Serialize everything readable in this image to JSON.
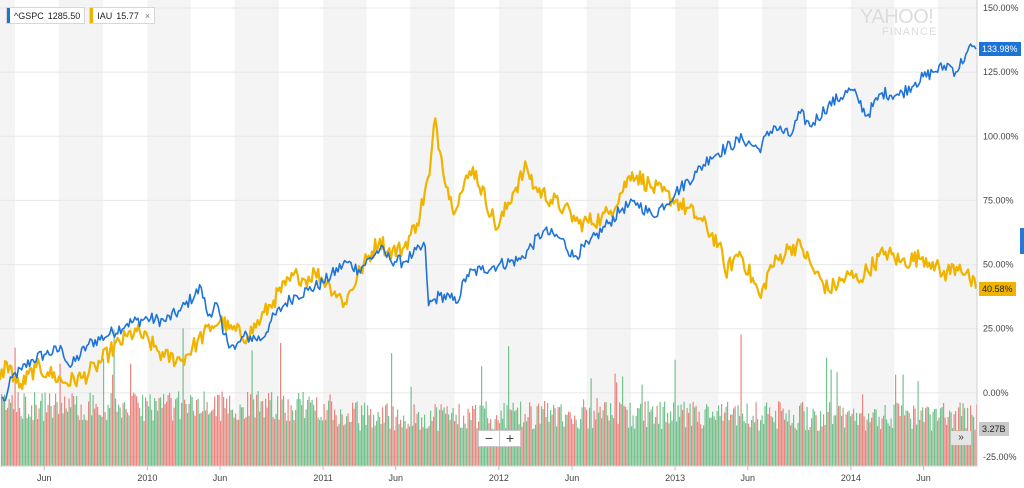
{
  "legend": {
    "items": [
      {
        "symbol": "^GSPC",
        "value": "1285.50",
        "color": "#1e73d6",
        "closable": false
      },
      {
        "symbol": "IAU",
        "value": "15.77",
        "color": "#f0b400",
        "closable": true
      }
    ],
    "close_glyph": "×"
  },
  "watermark": {
    "line1": "YAHOO!",
    "line2": "FINANCE"
  },
  "controls": {
    "zoom_out": "−",
    "zoom_in": "+",
    "expand": "»"
  },
  "colors": {
    "gspc": "#1e73d6",
    "iau": "#f0b400",
    "vol_up": "#5cb87b",
    "vol_down": "#e8716b",
    "band": "#f4f4f4"
  },
  "chart_data": {
    "type": "line",
    "ylabel": "",
    "xlabel": "",
    "y_unit": "%",
    "ylim": [
      -25,
      150
    ],
    "yticks": [
      "150.00%",
      "125.00%",
      "100.00%",
      "75.00%",
      "50.00%",
      "25.00%",
      "0.00%",
      "-25.00%"
    ],
    "ytick_values": [
      150,
      125,
      100,
      75,
      50,
      25,
      0,
      -25
    ],
    "xticks": [
      "Jun",
      "2010",
      "Jun",
      "2011",
      "Jun",
      "2012",
      "Jun",
      "2013",
      "Jun",
      "2014",
      "Jun"
    ],
    "xtick_dates": [
      "2009-06-01",
      "2010-01-01",
      "2010-06-01",
      "2011-01-01",
      "2011-06-01",
      "2012-01-01",
      "2012-06-01",
      "2013-01-01",
      "2013-06-01",
      "2014-01-01",
      "2014-06-01"
    ],
    "xlim": [
      "2009-03-01",
      "2014-09-20"
    ],
    "grid": true,
    "series": [
      {
        "name": "^GSPC",
        "last_label": "133.98%",
        "x": [
          "2009-03-05",
          "2009-03-09",
          "2009-03-15",
          "2009-03-26",
          "2009-04-15",
          "2009-05-08",
          "2009-06-01",
          "2009-07-08",
          "2009-07-25",
          "2009-09-01",
          "2009-10-15",
          "2009-11-20",
          "2010-01-01",
          "2010-02-05",
          "2010-03-10",
          "2010-04-23",
          "2010-05-07",
          "2010-05-25",
          "2010-06-07",
          "2010-07-02",
          "2010-07-20",
          "2010-08-27",
          "2010-09-15",
          "2010-10-15",
          "2010-11-05",
          "2010-12-01",
          "2011-01-01",
          "2011-02-18",
          "2011-03-16",
          "2011-04-29",
          "2011-05-20",
          "2011-06-16",
          "2011-07-07",
          "2011-08-01",
          "2011-08-08",
          "2011-08-31",
          "2011-09-22",
          "2011-10-04",
          "2011-10-27",
          "2011-11-25",
          "2012-01-01",
          "2012-02-15",
          "2012-04-02",
          "2012-05-10",
          "2012-06-04",
          "2012-07-06",
          "2012-08-15",
          "2012-09-14",
          "2012-10-15",
          "2012-11-15",
          "2013-01-02",
          "2013-02-15",
          "2013-03-15",
          "2013-05-21",
          "2013-06-24",
          "2013-07-25",
          "2013-08-28",
          "2013-09-18",
          "2013-10-08",
          "2013-11-15",
          "2013-12-31",
          "2014-01-15",
          "2014-02-03",
          "2014-03-07",
          "2014-04-11",
          "2014-05-15",
          "2014-06-20",
          "2014-07-24",
          "2014-08-07",
          "2014-08-28",
          "2014-09-10",
          "2014-09-18"
        ],
        "values": [
          -2,
          -3,
          -1,
          6,
          9,
          13,
          15,
          17,
          10,
          19,
          23,
          27,
          29,
          28,
          32,
          41,
          30,
          35,
          23,
          17,
          22,
          21,
          28,
          35,
          38,
          40,
          43,
          51,
          48,
          56,
          52,
          51,
          54,
          57,
          34,
          38,
          37,
          35,
          46,
          48,
          50,
          52,
          63,
          60,
          53,
          58,
          66,
          72,
          74,
          69,
          78,
          86,
          92,
          99,
          95,
          104,
          100,
          109,
          104,
          112,
          118,
          115,
          108,
          117,
          116,
          121,
          125,
          128,
          125,
          132,
          135,
          133.98
        ]
      },
      {
        "name": "IAU",
        "last_label": "40.58%",
        "x": [
          "2009-03-01",
          "2009-03-15",
          "2009-04-10",
          "2009-05-15",
          "2009-06-08",
          "2009-07-15",
          "2009-08-20",
          "2009-09-15",
          "2009-10-15",
          "2009-11-20",
          "2009-12-10",
          "2010-01-15",
          "2010-02-05",
          "2010-03-15",
          "2010-04-15",
          "2010-05-15",
          "2010-06-01",
          "2010-06-20",
          "2010-07-28",
          "2010-08-25",
          "2010-09-20",
          "2010-10-15",
          "2010-11-09",
          "2010-11-25",
          "2010-12-15",
          "2011-01-15",
          "2011-02-15",
          "2011-03-20",
          "2011-04-29",
          "2011-05-15",
          "2011-06-15",
          "2011-07-15",
          "2011-08-10",
          "2011-08-22",
          "2011-09-01",
          "2011-09-26",
          "2011-10-15",
          "2011-11-08",
          "2011-12-29",
          "2012-01-30",
          "2012-02-28",
          "2012-03-15",
          "2012-05-15",
          "2012-06-15",
          "2012-08-01",
          "2012-08-20",
          "2012-10-04",
          "2012-11-15",
          "2013-01-02",
          "2013-02-20",
          "2013-04-02",
          "2013-04-15",
          "2013-05-15",
          "2013-06-28",
          "2013-07-15",
          "2013-08-28",
          "2013-09-20",
          "2013-10-15",
          "2013-11-15",
          "2013-12-31",
          "2014-01-15",
          "2014-03-14",
          "2014-04-15",
          "2014-05-30",
          "2014-06-20",
          "2014-07-10",
          "2014-08-15",
          "2014-09-05",
          "2014-09-18"
        ],
        "values": [
          5,
          12,
          2,
          10,
          8,
          4,
          6,
          10,
          16,
          22,
          24,
          18,
          14,
          13,
          20,
          26,
          28,
          25,
          22,
          29,
          36,
          42,
          46,
          44,
          47,
          42,
          35,
          48,
          60,
          55,
          56,
          66,
          85,
          107,
          94,
          72,
          78,
          88,
          64,
          78,
          88,
          80,
          72,
          66,
          68,
          71,
          86,
          80,
          75,
          68,
          58,
          47,
          55,
          37,
          48,
          57,
          57,
          48,
          40,
          46,
          44,
          55,
          51,
          53,
          51,
          46,
          50,
          44,
          40.58
        ]
      }
    ],
    "volume": {
      "last_label": "3.27B",
      "note": "daily trading volume bars (green up / red down)"
    }
  }
}
